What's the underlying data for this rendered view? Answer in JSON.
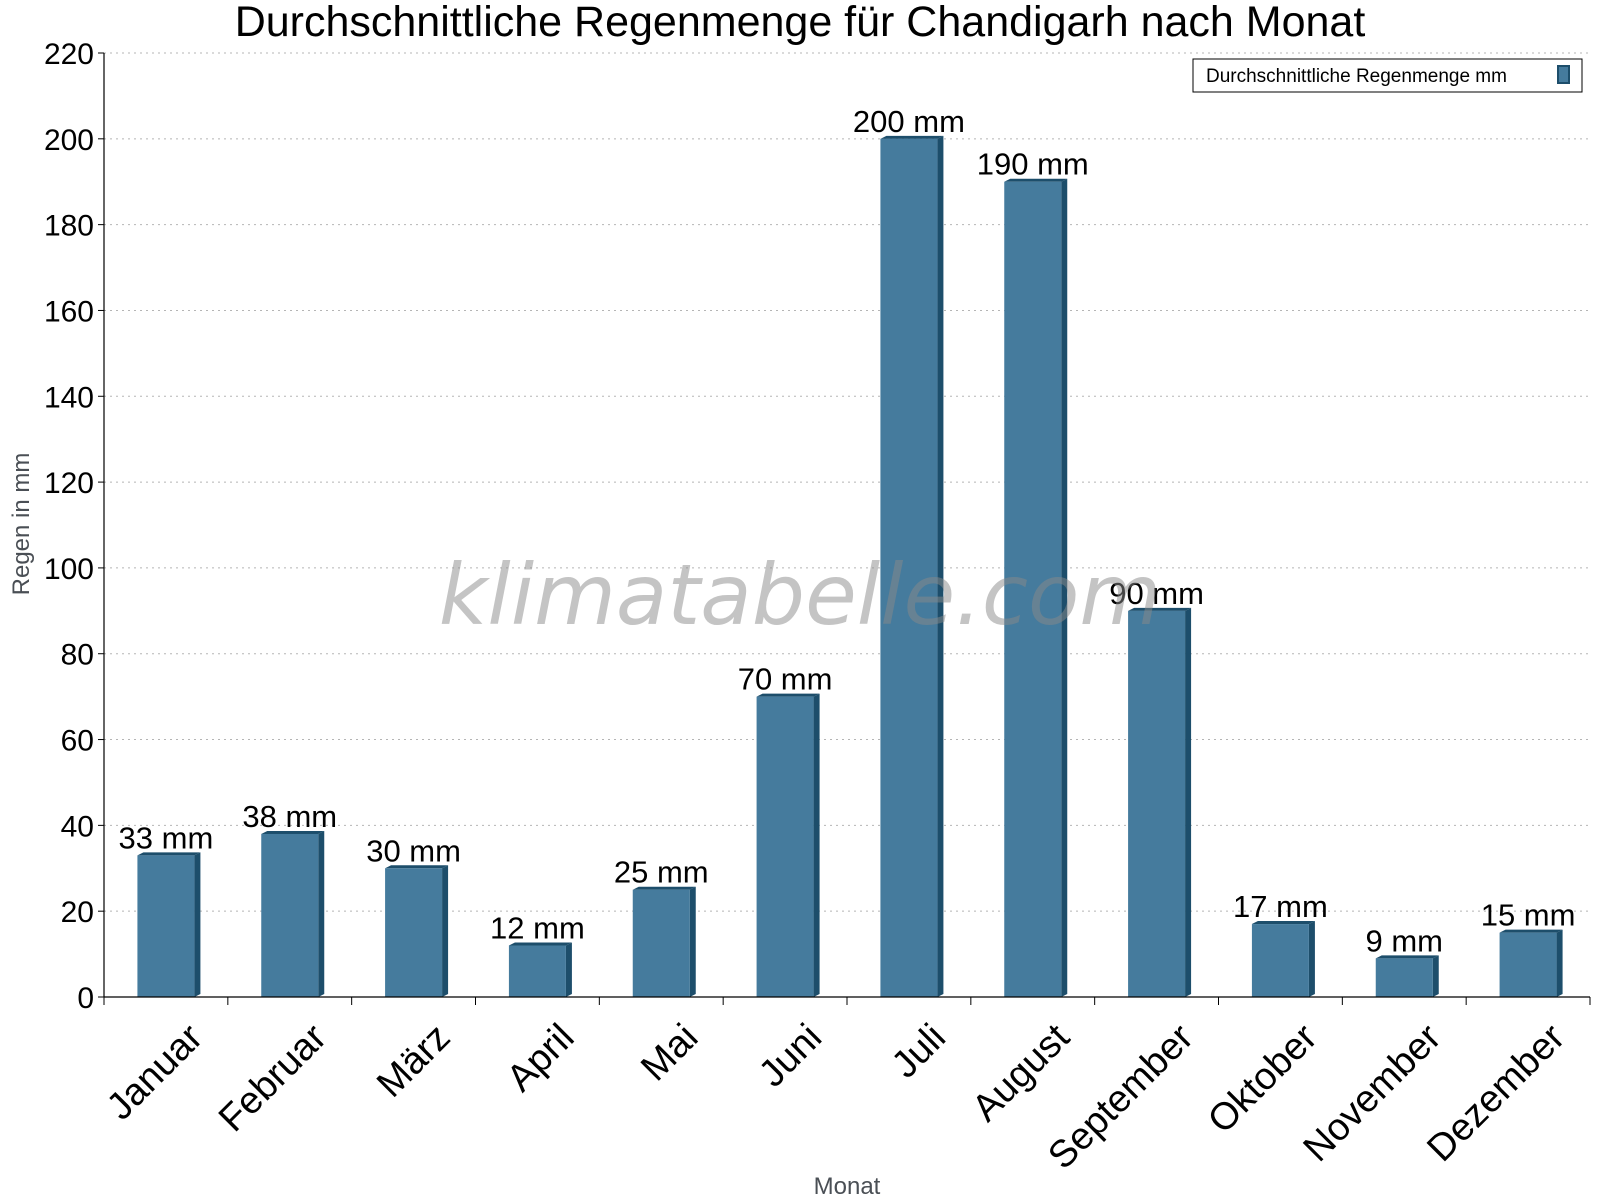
{
  "chart_data": {
    "type": "bar",
    "title": "Durchschnittliche Regenmenge für Chandigarh nach Monat",
    "xlabel": "Monat",
    "ylabel": "Regen in mm",
    "categories": [
      "Januar",
      "Februar",
      "März",
      "April",
      "Mai",
      "Juni",
      "Juli",
      "August",
      "September",
      "Oktober",
      "November",
      "Dezember"
    ],
    "series": [
      {
        "name": "Durchschnittliche Regenmenge mm",
        "values": [
          33,
          38,
          30,
          12,
          25,
          70,
          200,
          190,
          90,
          17,
          9,
          15
        ],
        "color": "#457b9d",
        "side_color": "#1d4e6b"
      }
    ],
    "value_labels": [
      "33 mm",
      "38 mm",
      "30 mm",
      "12 mm",
      "25 mm",
      "70 mm",
      "200 mm",
      "190 mm",
      "90 mm",
      "17 mm",
      "9 mm",
      "15 mm"
    ],
    "yticks": [
      0,
      20,
      40,
      60,
      80,
      100,
      120,
      140,
      160,
      180,
      200,
      220
    ],
    "ylim": [
      0,
      220
    ],
    "grid": true,
    "legend_position": "top-right"
  },
  "watermark": "klimatabelle.com"
}
